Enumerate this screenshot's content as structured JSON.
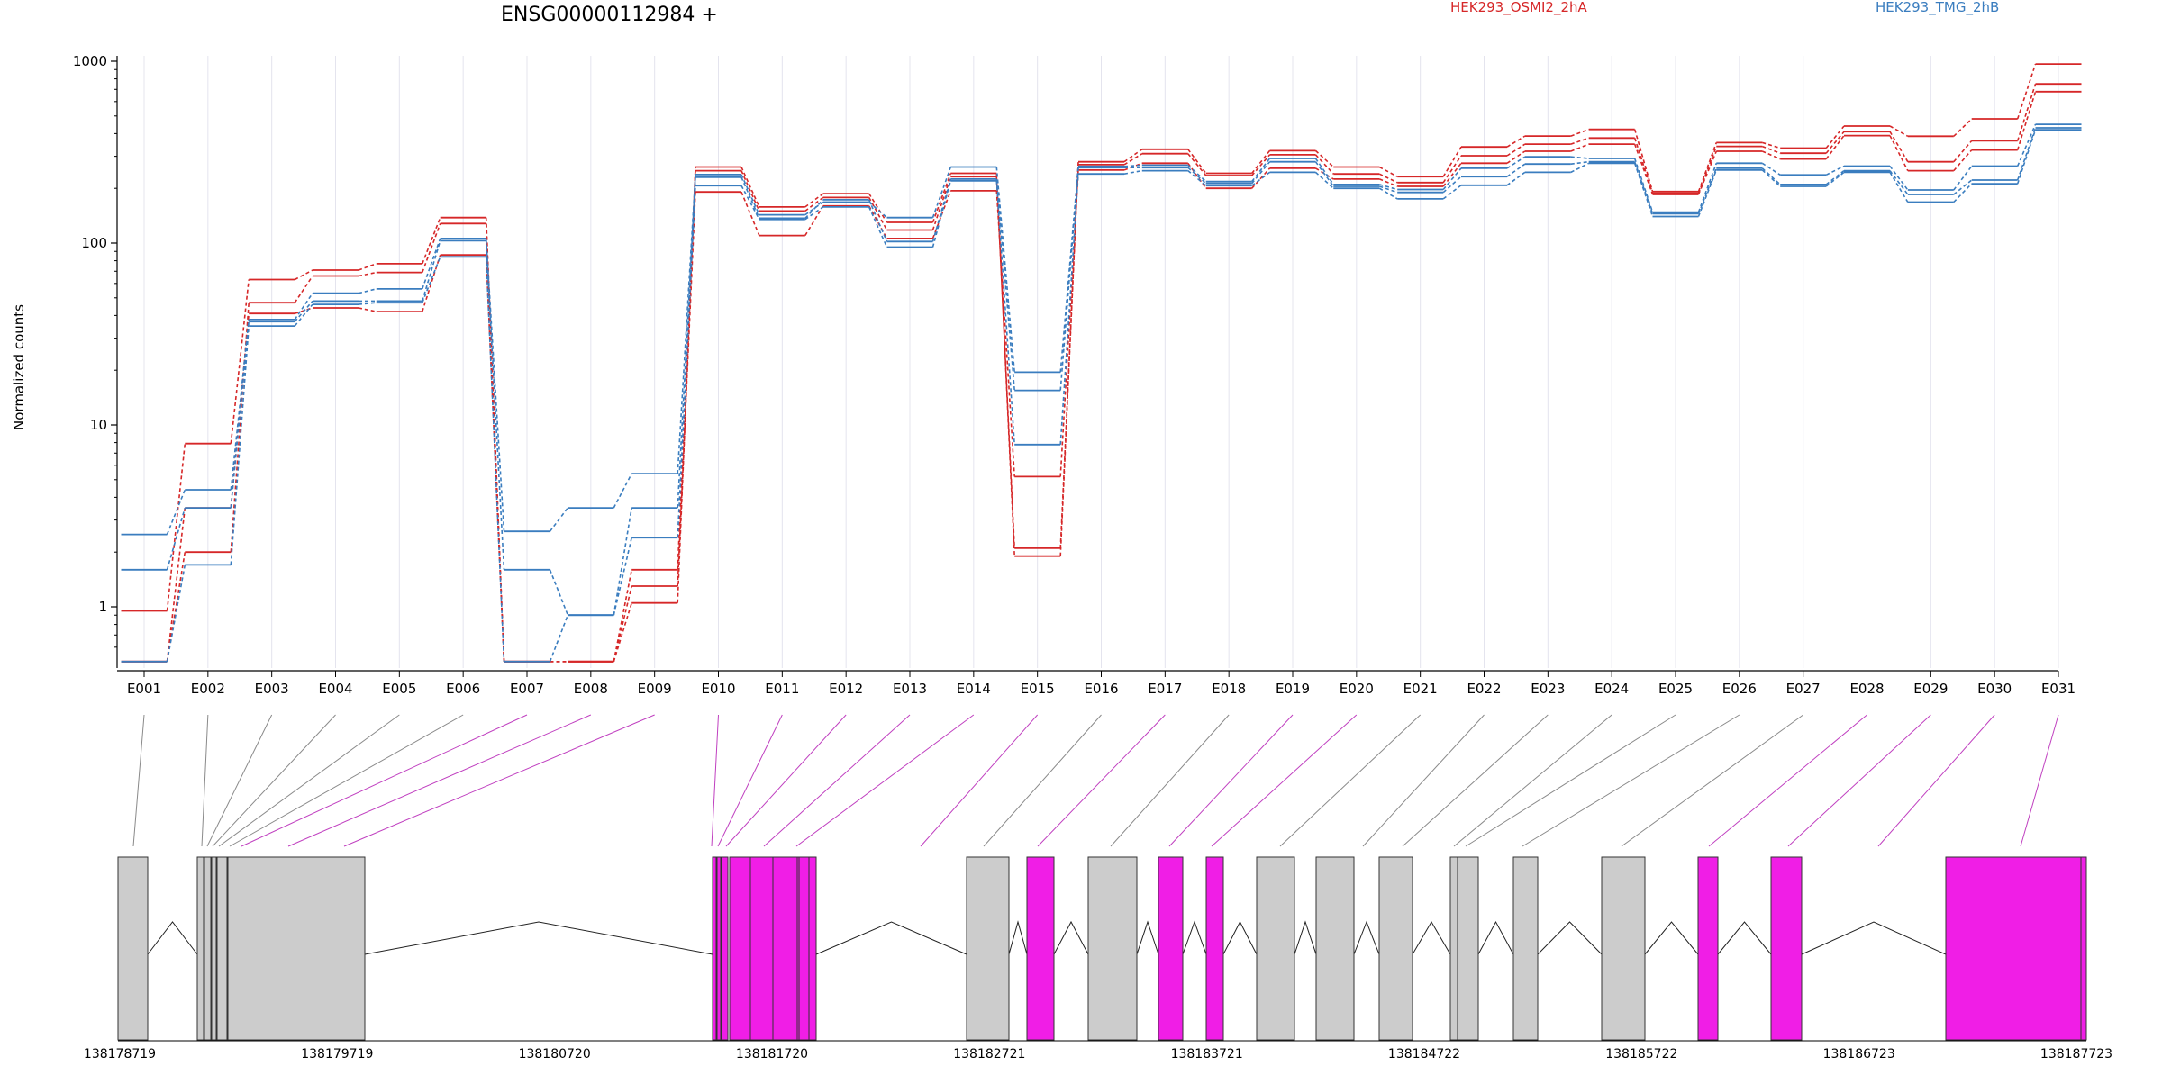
{
  "chart_data": {
    "type": "line",
    "title": "ENSG00000112984 +",
    "ylabel": "Normalized counts",
    "yscale": "log",
    "ylim": [
      0.5,
      1000
    ],
    "yticks": [
      1,
      10,
      100,
      1000
    ],
    "ytick_labels": [
      "1",
      "10",
      "100",
      "1000"
    ],
    "categories": [
      "E001",
      "E002",
      "E003",
      "E004",
      "E005",
      "E006",
      "E007",
      "E008",
      "E009",
      "E010",
      "E011",
      "E012",
      "E013",
      "E014",
      "E015",
      "E016",
      "E017",
      "E018",
      "E019",
      "E020",
      "E021",
      "E022",
      "E023",
      "E024",
      "E025",
      "E026",
      "E027",
      "E028",
      "E029",
      "E030",
      "E031"
    ],
    "legend": [
      {
        "name": "HEK293_OSMI2_2hA",
        "color": "#d62728"
      },
      {
        "name": "HEK293_TMG_2hB",
        "color": "#3a7dbf"
      }
    ],
    "series": [
      {
        "group": 0,
        "values": [
          0.95,
          7.9,
          63,
          71,
          77,
          138,
          0.5,
          0.5,
          1.05,
          262,
          158,
          187,
          130,
          242,
          1.9,
          280,
          328,
          242,
          322,
          262,
          232,
          338,
          388,
          422,
          192,
          357,
          333,
          440,
          387,
          482,
          965
        ]
      },
      {
        "group": 0,
        "values": [
          0.5,
          2.0,
          47,
          66,
          69,
          128,
          0.5,
          0.5,
          1.6,
          250,
          150,
          178,
          118,
          232,
          2.1,
          270,
          310,
          235,
          306,
          240,
          215,
          302,
          350,
          378,
          188,
          340,
          312,
          410,
          280,
          365,
          750
        ]
      },
      {
        "group": 0,
        "values": [
          0.5,
          3.5,
          41,
          44,
          42,
          86,
          0.5,
          0.5,
          1.3,
          191,
          110,
          160,
          106,
          194,
          5.2,
          252,
          275,
          200,
          258,
          225,
          205,
          275,
          320,
          350,
          185,
          320,
          290,
          390,
          250,
          325,
          680
        ]
      },
      {
        "group": 1,
        "values": [
          2.5,
          4.4,
          38,
          53,
          56,
          106,
          2.6,
          3.5,
          5.4,
          238,
          143,
          168,
          138,
          262,
          19.5,
          264,
          268,
          218,
          292,
          210,
          197,
          258,
          298,
          292,
          148,
          275,
          237,
          265,
          196,
          265,
          450
        ]
      },
      {
        "group": 1,
        "values": [
          1.6,
          3.5,
          37,
          48,
          48,
          103,
          1.6,
          0.9,
          3.5,
          230,
          137,
          173,
          102,
          225,
          15.5,
          260,
          260,
          213,
          280,
          205,
          190,
          232,
          272,
          280,
          145,
          258,
          210,
          250,
          185,
          222,
          430
        ]
      },
      {
        "group": 1,
        "values": [
          0.5,
          1.7,
          35,
          46,
          47,
          84,
          0.5,
          0.9,
          2.4,
          207,
          135,
          158,
          95,
          220,
          7.8,
          240,
          250,
          207,
          245,
          200,
          175,
          208,
          245,
          275,
          140,
          252,
          205,
          245,
          168,
          212,
          420
        ]
      }
    ],
    "genomic_axis": {
      "tick_labels": [
        "138178719",
        "138179719",
        "138180720",
        "138181720",
        "138182721",
        "138183721",
        "138184722",
        "138185722",
        "138186723",
        "138187723"
      ]
    },
    "exons": [
      {
        "type": "plain"
      },
      {
        "type": "plain"
      },
      {
        "type": "plain"
      },
      {
        "type": "plain"
      },
      {
        "type": "plain"
      },
      {
        "type": "plain"
      },
      {
        "type": "highlight"
      },
      {
        "type": "highlight"
      },
      {
        "type": "highlight"
      },
      {
        "type": "highlight"
      },
      {
        "type": "highlight"
      },
      {
        "type": "highlight"
      },
      {
        "type": "highlight"
      },
      {
        "type": "highlight"
      },
      {
        "type": "highlight"
      },
      {
        "type": "plain"
      },
      {
        "type": "highlight"
      },
      {
        "type": "plain"
      },
      {
        "type": "highlight"
      },
      {
        "type": "highlight"
      },
      {
        "type": "plain"
      },
      {
        "type": "plain"
      },
      {
        "type": "plain"
      },
      {
        "type": "plain"
      },
      {
        "type": "plain"
      },
      {
        "type": "plain"
      },
      {
        "type": "plain"
      },
      {
        "type": "highlight"
      },
      {
        "type": "highlight"
      },
      {
        "type": "highlight"
      },
      {
        "type": "highlight"
      }
    ],
    "colors": {
      "exon_plain": "#cccccc",
      "exon_highlight": "#f01ee6",
      "connector_highlight": "#c040c0",
      "connector_plain": "#8a8a8a",
      "axis": "#000000",
      "grid": "#e4e4ee"
    }
  }
}
